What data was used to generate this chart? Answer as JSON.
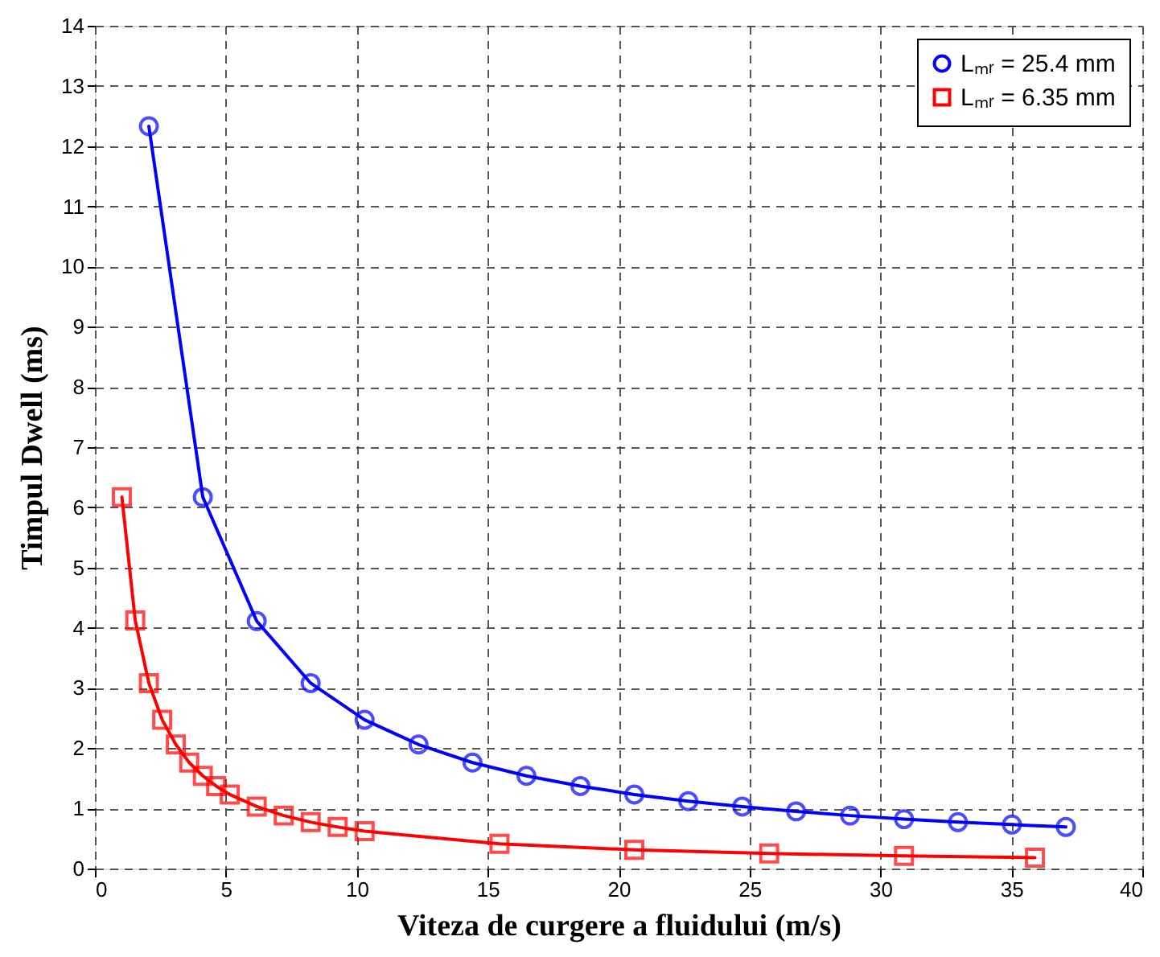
{
  "chart_data": {
    "type": "line",
    "xlabel": "Viteza de curgere a fluidului (m/s)",
    "ylabel": "Timpul Dwell (ms)",
    "xlim": [
      0,
      40
    ],
    "xticks": [
      0,
      5,
      10,
      15,
      20,
      25,
      30,
      35,
      40
    ],
    "ylim": [
      0,
      14
    ],
    "yticks": [
      0,
      1,
      2,
      3,
      4,
      5,
      6,
      7,
      8,
      9,
      10,
      11,
      12,
      13,
      14
    ],
    "grid": true,
    "legend": "top right",
    "line_style": "solid",
    "series": [
      {
        "name": "Lₘᵣ = 25.4 mm",
        "color": "#0000ff",
        "marker": "circle",
        "x": [
          2.06,
          4.12,
          6.18,
          8.24,
          10.3,
          12.36,
          14.42,
          16.48,
          18.54,
          20.6,
          22.66,
          24.72,
          26.78,
          28.84,
          30.9,
          32.96,
          35.02,
          37.08
        ],
        "values": [
          12.33,
          6.17,
          4.11,
          3.08,
          2.47,
          2.06,
          1.76,
          1.54,
          1.37,
          1.23,
          1.12,
          1.03,
          0.95,
          0.88,
          0.82,
          0.77,
          0.73,
          0.69
        ]
      },
      {
        "name": "Lₘᵣ = 6.35 mm",
        "color": "#ff0000",
        "marker": "square",
        "x": [
          1.03,
          1.54,
          2.06,
          2.57,
          3.09,
          3.6,
          4.12,
          4.63,
          5.15,
          6.18,
          7.21,
          8.24,
          9.27,
          10.3,
          15.45,
          20.6,
          25.75,
          30.9,
          35.9
        ],
        "values": [
          6.17,
          4.12,
          3.08,
          2.47,
          2.06,
          1.76,
          1.54,
          1.37,
          1.23,
          1.03,
          0.88,
          0.77,
          0.69,
          0.62,
          0.41,
          0.31,
          0.25,
          0.21,
          0.18
        ]
      }
    ]
  }
}
